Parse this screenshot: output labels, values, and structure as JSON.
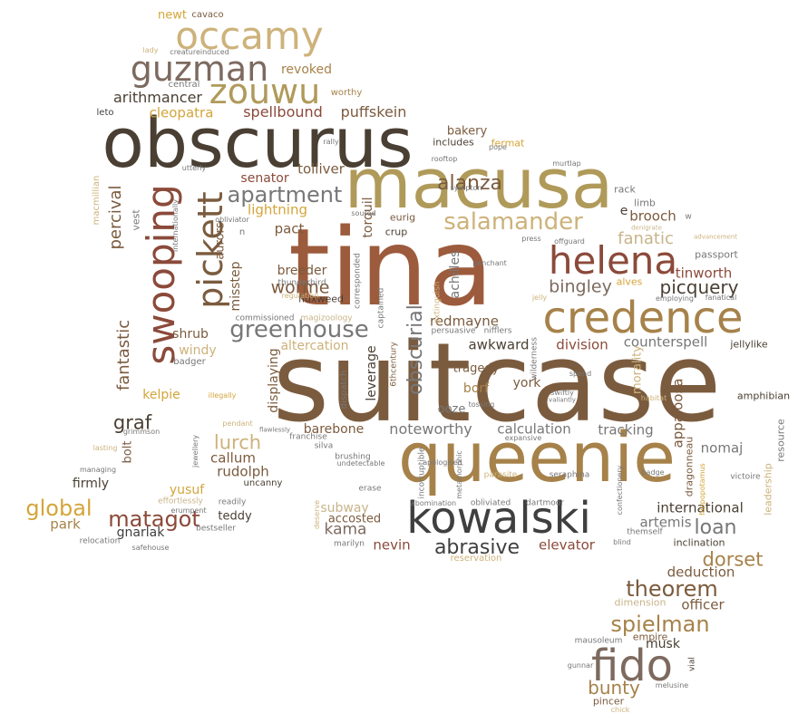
{
  "palette": {
    "dark": "#4a3f33",
    "rust": "#9c5b3c",
    "tan": "#a6824a",
    "khaki": "#b09a5a",
    "sand": "#cdb27a",
    "taupe": "#7d6a5f",
    "gold": "#d4a53a",
    "brown": "#7b5b3e",
    "grey": "#777777",
    "charcoal": "#3f3f3f",
    "copper": "#8b4a3a",
    "beige": "#c8b48a"
  },
  "words": [
    {
      "t": "suitcase",
      "c": "brown",
      "w": 100
    },
    {
      "t": "tina",
      "c": "rust",
      "w": 98
    },
    {
      "t": "queenie",
      "c": "tan",
      "w": 60
    },
    {
      "t": "obscurus",
      "c": "dark",
      "w": 68
    },
    {
      "t": "macusa",
      "c": "khaki",
      "w": 66
    },
    {
      "t": "credence",
      "c": "tan",
      "w": 38
    },
    {
      "t": "kowalski",
      "c": "charcoal",
      "w": 40
    },
    {
      "t": "fido",
      "c": "taupe",
      "w": 40
    },
    {
      "t": "helena",
      "c": "copper",
      "w": 36
    },
    {
      "t": "swooping",
      "c": "copper",
      "w": 36
    },
    {
      "t": "occamy",
      "c": "sand",
      "w": 35
    },
    {
      "t": "guzman",
      "c": "taupe",
      "w": 32
    },
    {
      "t": "zouwu",
      "c": "khaki",
      "w": 32
    },
    {
      "t": "pickett",
      "c": "brown",
      "w": 32
    },
    {
      "t": "salamander",
      "c": "sand",
      "w": 22
    },
    {
      "t": "greenhouse",
      "c": "grey",
      "w": 22
    },
    {
      "t": "apartment",
      "c": "grey",
      "w": 20
    },
    {
      "t": "spielman",
      "c": "tan",
      "w": 20
    },
    {
      "t": "theorem",
      "c": "brown",
      "w": 20
    },
    {
      "t": "matagot",
      "c": "copper",
      "w": 20
    },
    {
      "t": "global",
      "c": "gold",
      "w": 20
    },
    {
      "t": "alanza",
      "c": "brown",
      "w": 19
    },
    {
      "t": "obscurial",
      "c": "grey",
      "w": 19
    },
    {
      "t": "abrasive",
      "c": "charcoal",
      "w": 19
    },
    {
      "t": "loan",
      "c": "grey",
      "w": 19
    },
    {
      "t": "dorset",
      "c": "tan",
      "w": 18
    },
    {
      "t": "bunty",
      "c": "tan",
      "w": 17
    },
    {
      "t": "picquery",
      "c": "dark",
      "w": 17
    },
    {
      "t": "bingley",
      "c": "taupe",
      "w": 16
    },
    {
      "t": "worme",
      "c": "brown",
      "w": 16
    },
    {
      "t": "lurch",
      "c": "sand",
      "w": 18
    },
    {
      "t": "kama",
      "c": "taupe",
      "w": 15
    },
    {
      "t": "graf",
      "c": "dark",
      "w": 18
    },
    {
      "t": "fanatic",
      "c": "beige",
      "w": 15
    },
    {
      "t": "percival",
      "c": "brown",
      "w": 15
    },
    {
      "t": "fantastic",
      "c": "brown",
      "w": 15
    },
    {
      "t": "noteworthy",
      "c": "grey",
      "w": 14
    },
    {
      "t": "calculation",
      "c": "grey",
      "w": 13
    },
    {
      "t": "tracking",
      "c": "grey",
      "w": 13
    },
    {
      "t": "appaloosa",
      "c": "brown",
      "w": 13
    },
    {
      "t": "deduction",
      "c": "brown",
      "w": 13
    },
    {
      "t": "officer",
      "c": "brown",
      "w": 13
    },
    {
      "t": "international",
      "c": "dark",
      "w": 13
    },
    {
      "t": "artemis",
      "c": "grey",
      "w": 13
    },
    {
      "t": "nomaj",
      "c": "grey",
      "w": 13
    },
    {
      "t": "rudolph",
      "c": "brown",
      "w": 13
    },
    {
      "t": "callum",
      "c": "brown",
      "w": 13
    },
    {
      "t": "awkward",
      "c": "dark",
      "w": 13
    },
    {
      "t": "division",
      "c": "copper",
      "w": 13
    },
    {
      "t": "counterspell",
      "c": "grey",
      "w": 13
    },
    {
      "t": "elevator",
      "c": "copper",
      "w": 13
    },
    {
      "t": "nevin",
      "c": "copper",
      "w": 13
    },
    {
      "t": "spellbound",
      "c": "copper",
      "w": 14
    },
    {
      "t": "puffskein",
      "c": "brown",
      "w": 14
    },
    {
      "t": "arithmancer",
      "c": "dark",
      "w": 14
    },
    {
      "t": "cleopatra",
      "c": "gold",
      "w": 13
    },
    {
      "t": "redmayne",
      "c": "brown",
      "w": 13
    },
    {
      "t": "tolliver",
      "c": "brown",
      "w": 13
    },
    {
      "t": "lightning",
      "c": "gold",
      "w": 13
    },
    {
      "t": "pact",
      "c": "brown",
      "w": 13
    },
    {
      "t": "brooch",
      "c": "brown",
      "w": 13
    },
    {
      "t": "tinworth",
      "c": "copper",
      "w": 13
    },
    {
      "t": "kelpie",
      "c": "gold",
      "w": 12
    },
    {
      "t": "park",
      "c": "tan",
      "w": 13
    },
    {
      "t": "gnarlak",
      "c": "charcoal",
      "w": 12
    },
    {
      "t": "yusuf",
      "c": "gold",
      "w": 12
    },
    {
      "t": "firmly",
      "c": "dark",
      "w": 12
    },
    {
      "t": "shrub",
      "c": "brown",
      "w": 12
    },
    {
      "t": "windy",
      "c": "sand",
      "w": 12
    },
    {
      "t": "altercation",
      "c": "sand",
      "w": 12
    },
    {
      "t": "barebone",
      "c": "brown",
      "w": 12
    },
    {
      "t": "subway",
      "c": "beige",
      "w": 12
    },
    {
      "t": "musk",
      "c": "dark",
      "w": 12
    },
    {
      "t": "teddy",
      "c": "dark",
      "w": 11
    },
    {
      "t": "revoked",
      "c": "tan",
      "w": 12
    },
    {
      "t": "senator",
      "c": "copper",
      "w": 12
    },
    {
      "t": "breeder",
      "c": "brown",
      "w": 12
    },
    {
      "t": "misstep",
      "c": "brown",
      "w": 12
    },
    {
      "t": "displaying",
      "c": "brown",
      "w": 12
    },
    {
      "t": "torquil",
      "c": "brown",
      "w": 12
    },
    {
      "t": "leverage",
      "c": "dark",
      "w": 12
    },
    {
      "t": "achilles",
      "c": "grey",
      "w": 12
    },
    {
      "t": "tragedy",
      "c": "brown",
      "w": 11
    },
    {
      "t": "york",
      "c": "brown",
      "w": 12
    },
    {
      "t": "borf",
      "c": "tan",
      "w": 12
    },
    {
      "t": "ooze",
      "c": "grey",
      "w": 11
    },
    {
      "t": "bolt",
      "c": "brown",
      "w": 11
    },
    {
      "t": "accosted",
      "c": "brown",
      "w": 11
    },
    {
      "t": "morality",
      "c": "sand",
      "w": 11
    },
    {
      "t": "amphibian",
      "c": "dark",
      "w": 10
    },
    {
      "t": "dragonneau",
      "c": "brown",
      "w": 10
    },
    {
      "t": "resource",
      "c": "grey",
      "w": 10
    },
    {
      "t": "leadership",
      "c": "sand",
      "w": 10
    },
    {
      "t": "inclination",
      "c": "dark",
      "w": 10
    },
    {
      "t": "empire",
      "c": "brown",
      "w": 10
    },
    {
      "t": "fermat",
      "c": "gold",
      "w": 10
    },
    {
      "t": "bakery",
      "c": "brown",
      "w": 11
    },
    {
      "t": "includes",
      "c": "dark",
      "w": 10
    },
    {
      "t": "aurors",
      "c": "brown",
      "w": 11
    },
    {
      "t": "fluxweed",
      "c": "dark",
      "w": 10
    },
    {
      "t": "crup",
      "c": "dark",
      "w": 10
    },
    {
      "t": "eurig",
      "c": "brown",
      "w": 10
    },
    {
      "t": "alves",
      "c": "gold",
      "w": 10
    },
    {
      "t": "jellylike",
      "c": "dark",
      "w": 10
    },
    {
      "t": "passport",
      "c": "grey",
      "w": 10
    },
    {
      "t": "limb",
      "c": "grey",
      "w": 10
    },
    {
      "t": "rack",
      "c": "grey",
      "w": 10
    },
    {
      "t": "newt",
      "c": "gold",
      "w": 11
    },
    {
      "t": "cavaco",
      "c": "brown",
      "w": 9
    },
    {
      "t": "worthy",
      "c": "tan",
      "w": 9
    },
    {
      "t": "central",
      "c": "grey",
      "w": 9
    },
    {
      "t": "leto",
      "c": "charcoal",
      "w": 9
    },
    {
      "t": "macmillian",
      "c": "sand",
      "w": 9
    },
    {
      "t": "vest",
      "c": "grey",
      "w": 10
    },
    {
      "t": "badger",
      "c": "grey",
      "w": 9
    },
    {
      "t": "dimension",
      "c": "beige",
      "w": 10
    },
    {
      "t": "pincer",
      "c": "brown",
      "w": 10
    },
    {
      "t": "mausoleum",
      "c": "grey",
      "w": 8
    },
    {
      "t": "gunnar",
      "c": "grey",
      "w": 7
    },
    {
      "t": "melusine",
      "c": "grey",
      "w": 7
    },
    {
      "t": "chick",
      "c": "sand",
      "w": 7
    },
    {
      "t": "vial",
      "c": "dark",
      "w": 8
    },
    {
      "t": "wilderness",
      "c": "grey",
      "w": 8
    },
    {
      "t": "6thcentury",
      "c": "brown",
      "w": 8
    },
    {
      "t": "dispatch",
      "c": "grey",
      "w": 9
    },
    {
      "t": "captained",
      "c": "grey",
      "w": 8
    },
    {
      "t": "corresponded",
      "c": "grey",
      "w": 8
    },
    {
      "t": "extinguish",
      "c": "sand",
      "w": 8
    },
    {
      "t": "thunderbird",
      "c": "grey",
      "w": 8
    },
    {
      "t": "sympton",
      "c": "grey",
      "w": 7
    },
    {
      "t": "soured",
      "c": "grey",
      "w": 7
    },
    {
      "t": "rooftop",
      "c": "grey",
      "w": 7
    },
    {
      "t": "pope",
      "c": "grey",
      "w": 7
    },
    {
      "t": "murtlap",
      "c": "grey",
      "w": 7
    },
    {
      "t": "rally",
      "c": "grey",
      "w": 7
    },
    {
      "t": "utterly",
      "c": "grey",
      "w": 7
    },
    {
      "t": "obliviator",
      "c": "grey",
      "w": 7
    },
    {
      "t": "internationally",
      "c": "grey",
      "w": 7
    },
    {
      "t": "lady",
      "c": "sand",
      "w": 7
    },
    {
      "t": "creatureinduced",
      "c": "grey",
      "w": 7
    },
    {
      "t": "denigrate",
      "c": "beige",
      "w": 6
    },
    {
      "t": "advancement",
      "c": "sand",
      "w": 6
    },
    {
      "t": "offguard",
      "c": "grey",
      "w": 7
    },
    {
      "t": "press",
      "c": "grey",
      "w": 7
    },
    {
      "t": "penchant",
      "c": "grey",
      "w": 7
    },
    {
      "t": "jelly",
      "c": "sand",
      "w": 7
    },
    {
      "t": "employing",
      "c": "grey",
      "w": 7
    },
    {
      "t": "fanatical",
      "c": "grey",
      "w": 7
    },
    {
      "t": "persuasive",
      "c": "grey",
      "w": 8
    },
    {
      "t": "nifflers",
      "c": "grey",
      "w": 8
    },
    {
      "t": "commissioned",
      "c": "grey",
      "w": 8
    },
    {
      "t": "magizoology",
      "c": "beige",
      "w": 8
    },
    {
      "t": "regulation",
      "c": "sand",
      "w": 7
    },
    {
      "t": "illegally",
      "c": "gold",
      "w": 7
    },
    {
      "t": "pendant",
      "c": "sand",
      "w": 7
    },
    {
      "t": "flawlessly",
      "c": "grey",
      "w": 6
    },
    {
      "t": "grimmson",
      "c": "grey",
      "w": 7
    },
    {
      "t": "lasting",
      "c": "sand",
      "w": 7
    },
    {
      "t": "franchise",
      "c": "grey",
      "w": 8
    },
    {
      "t": "silva",
      "c": "grey",
      "w": 8
    },
    {
      "t": "jewellery",
      "c": "grey",
      "w": 7
    },
    {
      "t": "managing",
      "c": "grey",
      "w": 7
    },
    {
      "t": "uncanny",
      "c": "dark",
      "w": 9
    },
    {
      "t": "effortlessly",
      "c": "beige",
      "w": 8
    },
    {
      "t": "readily",
      "c": "grey",
      "w": 8
    },
    {
      "t": "erumpent",
      "c": "grey",
      "w": 7
    },
    {
      "t": "relocation",
      "c": "grey",
      "w": 8
    },
    {
      "t": "bestseller",
      "c": "grey",
      "w": 8
    },
    {
      "t": "safehouse",
      "c": "grey",
      "w": 7
    },
    {
      "t": "deserve",
      "c": "sand",
      "w": 7
    },
    {
      "t": "marilyn",
      "c": "grey",
      "w": 8
    },
    {
      "t": "undetectable",
      "c": "grey",
      "w": 7
    },
    {
      "t": "erase",
      "c": "grey",
      "w": 8
    },
    {
      "t": "incorruptible",
      "c": "grey",
      "w": 8
    },
    {
      "t": "apologised",
      "c": "grey",
      "w": 7
    },
    {
      "t": "metamorphic",
      "c": "grey",
      "w": 7
    },
    {
      "t": "abomination",
      "c": "grey",
      "w": 7
    },
    {
      "t": "obliviated",
      "c": "grey",
      "w": 8
    },
    {
      "t": "dartmoor",
      "c": "grey",
      "w": 8
    },
    {
      "t": "parasite",
      "c": "sand",
      "w": 8
    },
    {
      "t": "expansive",
      "c": "grey",
      "w": 7
    },
    {
      "t": "seraphina",
      "c": "grey",
      "w": 8
    },
    {
      "t": "confectionery",
      "c": "grey",
      "w": 7
    },
    {
      "t": "hippopotamus",
      "c": "gold",
      "w": 7
    },
    {
      "t": "badge",
      "c": "grey",
      "w": 7
    },
    {
      "t": "victoire",
      "c": "grey",
      "w": 8
    },
    {
      "t": "blind",
      "c": "grey",
      "w": 7
    },
    {
      "t": "themself",
      "c": "grey",
      "w": 8
    },
    {
      "t": "reservation",
      "c": "sand",
      "w": 9
    },
    {
      "t": "spend",
      "c": "grey",
      "w": 7
    },
    {
      "t": "swiftly",
      "c": "grey",
      "w": 7
    },
    {
      "t": "valiantly",
      "c": "grey",
      "w": 6
    },
    {
      "t": "tossing",
      "c": "grey",
      "w": 7
    },
    {
      "t": "habitat",
      "c": "sand",
      "w": 7
    },
    {
      "t": "brushing",
      "c": "grey",
      "w": 8
    },
    {
      "t": "w",
      "c": "grey",
      "w": 8
    },
    {
      "t": "n",
      "c": "grey",
      "w": 9
    },
    {
      "t": "e",
      "c": "dark",
      "w": 12
    }
  ]
}
